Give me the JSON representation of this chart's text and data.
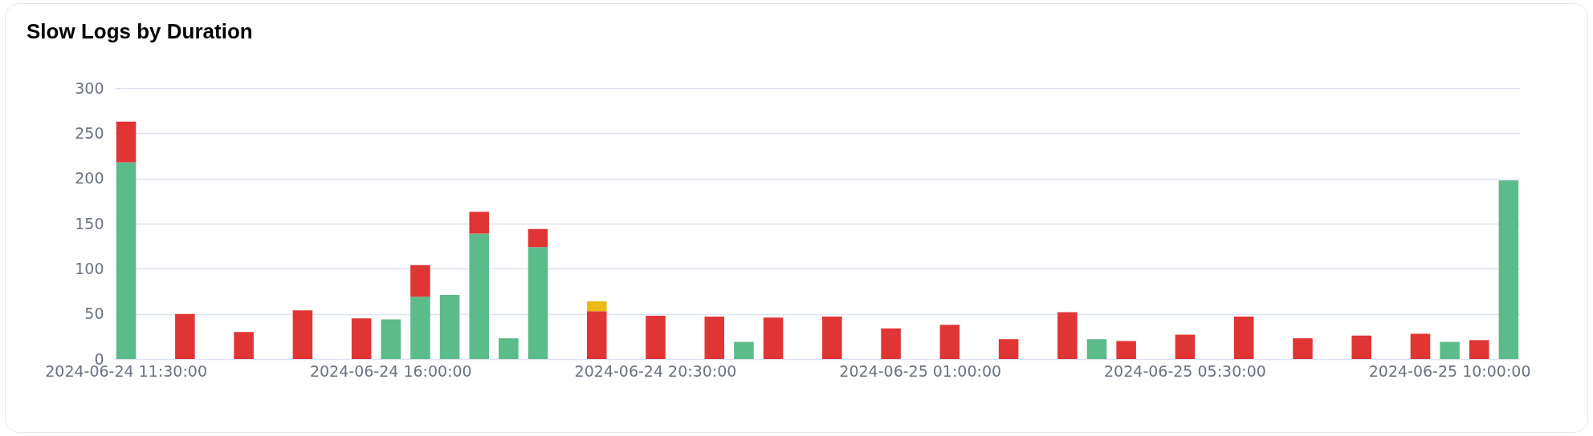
{
  "chart_data": {
    "type": "bar",
    "title": "Slow Logs by Duration",
    "stacked": true,
    "categories": [
      "2024-06-24 11:30:00",
      null,
      null,
      null,
      null,
      null,
      null,
      null,
      null,
      "2024-06-24 16:00:00",
      null,
      null,
      null,
      null,
      null,
      null,
      null,
      null,
      "2024-06-24 20:30:00",
      null,
      null,
      null,
      null,
      null,
      null,
      null,
      null,
      "2024-06-25 01:00:00",
      null,
      null,
      null,
      null,
      null,
      null,
      null,
      null,
      "2024-06-25 05:30:00",
      null,
      null,
      null,
      null,
      null,
      null,
      null,
      null,
      "2024-06-25 10:00:00",
      null,
      null
    ],
    "series": [
      {
        "color": "#5bbb8b",
        "values": [
          218,
          null,
          null,
          null,
          null,
          null,
          null,
          null,
          null,
          44,
          69,
          71,
          139,
          23,
          124,
          null,
          null,
          null,
          null,
          null,
          null,
          19,
          null,
          null,
          null,
          null,
          null,
          null,
          null,
          null,
          null,
          null,
          null,
          22,
          null,
          null,
          null,
          null,
          null,
          null,
          null,
          null,
          null,
          null,
          null,
          19,
          null,
          198
        ]
      },
      {
        "color": "#e03535",
        "values": [
          45,
          null,
          50,
          null,
          30,
          null,
          54,
          null,
          45,
          null,
          35,
          null,
          24,
          null,
          20,
          null,
          53,
          null,
          48,
          null,
          47,
          null,
          46,
          null,
          47,
          null,
          34,
          null,
          38,
          null,
          22,
          null,
          52,
          null,
          20,
          null,
          27,
          null,
          47,
          null,
          23,
          null,
          26,
          null,
          28,
          null,
          21,
          null
        ]
      },
      {
        "color": "#ebbb15",
        "values": [
          null,
          null,
          null,
          null,
          null,
          null,
          null,
          null,
          null,
          null,
          null,
          null,
          null,
          null,
          null,
          null,
          11,
          null,
          null,
          null,
          null,
          null,
          null,
          null,
          null,
          null,
          null,
          null,
          null,
          null,
          null,
          null,
          null,
          null,
          null,
          null,
          null,
          null,
          null,
          null,
          null,
          null,
          null,
          null,
          null,
          null,
          null,
          null
        ]
      }
    ],
    "ylim": [
      0,
      300
    ],
    "yticks": [
      0,
      50,
      100,
      150,
      200,
      250,
      300
    ],
    "grid": "y"
  }
}
